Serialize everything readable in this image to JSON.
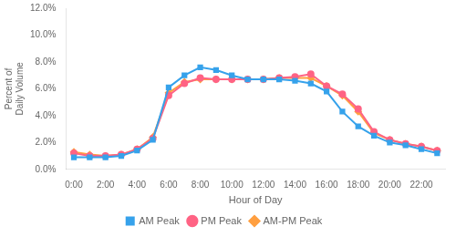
{
  "chart_data": {
    "type": "line",
    "xlabel": "Hour of Day",
    "ylabel": [
      "Percent of",
      "Daily Volume"
    ],
    "x": [
      0,
      1,
      2,
      3,
      4,
      5,
      6,
      7,
      8,
      9,
      10,
      11,
      12,
      13,
      14,
      15,
      16,
      17,
      18,
      19,
      20,
      21,
      22,
      23
    ],
    "series": [
      {
        "name": "AM Peak",
        "marker": "square",
        "values": [
          0.9,
          0.9,
          0.9,
          1.0,
          1.4,
          2.2,
          6.1,
          7.0,
          7.6,
          7.4,
          7.0,
          6.7,
          6.7,
          6.7,
          6.6,
          6.4,
          5.8,
          4.3,
          3.2,
          2.5,
          2.0,
          1.8,
          1.5,
          1.2
        ]
      },
      {
        "name": "PM Peak",
        "marker": "circle",
        "values": [
          1.2,
          1.0,
          1.0,
          1.1,
          1.5,
          2.3,
          5.5,
          6.4,
          6.8,
          6.7,
          6.7,
          6.7,
          6.7,
          6.8,
          6.9,
          7.1,
          6.2,
          5.6,
          4.5,
          2.8,
          2.2,
          1.9,
          1.7,
          1.4
        ]
      },
      {
        "name": "AM-PM Peak",
        "marker": "diamond",
        "values": [
          1.3,
          1.1,
          1.0,
          1.1,
          1.5,
          2.4,
          5.7,
          6.5,
          6.7,
          6.7,
          6.7,
          6.7,
          6.7,
          6.8,
          6.8,
          6.8,
          6.2,
          5.5,
          4.3,
          2.7,
          2.2,
          1.9,
          1.7,
          1.4
        ]
      }
    ],
    "xlim": [
      -0.5,
      23.5
    ],
    "xticks": [
      {
        "value": 0,
        "label": "0:00"
      },
      {
        "value": 2,
        "label": "2:00"
      },
      {
        "value": 4,
        "label": "4:00"
      },
      {
        "value": 6,
        "label": "6:00"
      },
      {
        "value": 8,
        "label": "8:00"
      },
      {
        "value": 10,
        "label": "10:00"
      },
      {
        "value": 12,
        "label": "12:00"
      },
      {
        "value": 14,
        "label": "14:00"
      },
      {
        "value": 16,
        "label": "16:00"
      },
      {
        "value": 18,
        "label": "18:00"
      },
      {
        "value": 20,
        "label": "20:00"
      },
      {
        "value": 22,
        "label": "22:00"
      }
    ],
    "ylim": [
      0.0,
      12.0
    ],
    "yticks": [
      {
        "value": 0,
        "label": "0.0%"
      },
      {
        "value": 2,
        "label": "2.0%"
      },
      {
        "value": 4,
        "label": "4.0%"
      },
      {
        "value": 6,
        "label": "6.0%"
      },
      {
        "value": 8,
        "label": "8.0%"
      },
      {
        "value": 10,
        "label": "10.0%"
      },
      {
        "value": 12,
        "label": "12.0%"
      }
    ],
    "grid": false,
    "legend": "bottom"
  }
}
